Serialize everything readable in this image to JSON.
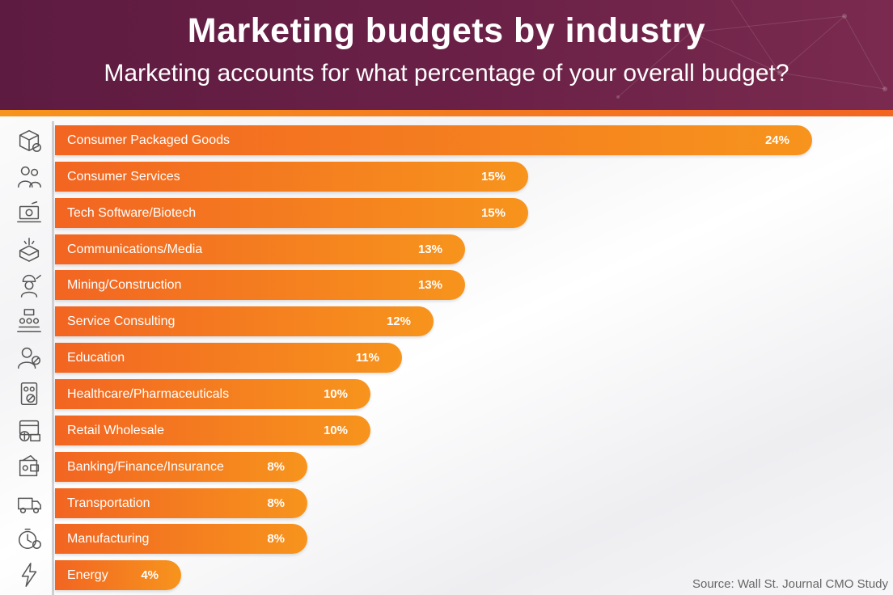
{
  "header": {
    "title": "Marketing budgets by industry",
    "subtitle": "Marketing accounts for what percentage of your overall budget?"
  },
  "colors": {
    "header_bg": "#6b2147",
    "bar_start": "#f26522",
    "bar_end": "#f7941d",
    "icon_stroke": "#555555"
  },
  "chart_data": {
    "type": "bar",
    "orientation": "horizontal",
    "title": "Marketing budgets by industry",
    "subtitle": "Marketing accounts for what percentage of your overall budget?",
    "categories": [
      "Consumer Packaged Goods",
      "Consumer Services",
      "Tech Software/Biotech",
      "Communications/Media",
      "Mining/Construction",
      "Service Consulting",
      "Education",
      "Healthcare/Pharmaceuticals",
      "Retail Wholesale",
      "Banking/Finance/Insurance",
      "Transportation",
      "Manufacturing",
      "Energy"
    ],
    "values": [
      24,
      15,
      15,
      13,
      13,
      12,
      11,
      10,
      10,
      8,
      8,
      8,
      4
    ],
    "value_labels": [
      "24%",
      "15%",
      "15%",
      "13%",
      "13%",
      "12%",
      "11%",
      "10%",
      "10%",
      "8%",
      "8%",
      "8%",
      "4%"
    ],
    "icons": [
      "package-icon",
      "people-icon",
      "laptop-gear-icon",
      "broadcast-box-icon",
      "worker-helmet-icon",
      "meeting-icon",
      "graduate-icon",
      "medicine-icon",
      "store-cash-icon",
      "wallet-icon",
      "truck-icon",
      "gear-timer-icon",
      "lightning-icon"
    ],
    "unit": "%",
    "grid": false,
    "legend": "none"
  },
  "footer": {
    "source": "Source: Wall St. Journal CMO Study"
  }
}
